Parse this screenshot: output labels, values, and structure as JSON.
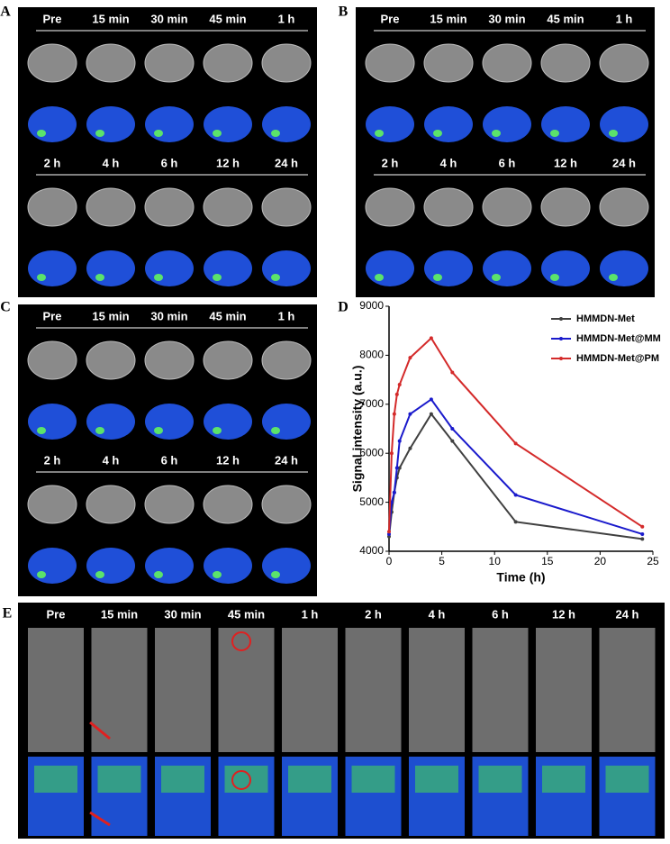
{
  "panels": [
    {
      "label": "A",
      "rows": [
        [
          "Pre",
          "15 min",
          "30 min",
          "45 min",
          "1 h"
        ],
        [
          "2 h",
          "4 h",
          "6 h",
          "12 h",
          "24 h"
        ]
      ]
    },
    {
      "label": "B",
      "rows": [
        [
          "Pre",
          "15 min",
          "30 min",
          "45 min",
          "1 h"
        ],
        [
          "2 h",
          "4 h",
          "6 h",
          "12 h",
          "24 h"
        ]
      ]
    },
    {
      "label": "C",
      "rows": [
        [
          "Pre",
          "15 min",
          "30 min",
          "45 min",
          "1 h"
        ],
        [
          "2 h",
          "4 h",
          "6 h",
          "12 h",
          "24 h"
        ]
      ]
    }
  ],
  "panel_d": {
    "label": "D"
  },
  "panel_e": {
    "label": "E",
    "times": [
      "Pre",
      "15 min",
      "30 min",
      "45 min",
      "1 h",
      "2 h",
      "4 h",
      "6 h",
      "12 h",
      "24 h"
    ]
  },
  "chart_data": {
    "type": "line",
    "x_label": "Time (h)",
    "y_label": "Signal intensity (a.u.)",
    "x": [
      0,
      0.25,
      0.5,
      0.75,
      1,
      2,
      4,
      6,
      12,
      24
    ],
    "series": [
      {
        "name": "HMMDN-Met",
        "color": "#404040",
        "values": [
          4300,
          4800,
          5200,
          5500,
          5700,
          6100,
          6800,
          6250,
          4600,
          4250
        ]
      },
      {
        "name": "HMMDN-Met@MM",
        "color": "#1a1acc",
        "values": [
          4350,
          5000,
          5200,
          5700,
          6250,
          6800,
          7100,
          6500,
          5150,
          4350
        ]
      },
      {
        "name": "HMMDN-Met@PM",
        "color": "#d42a2a",
        "values": [
          4400,
          6000,
          6800,
          7200,
          7400,
          7950,
          8350,
          7650,
          6200,
          4500
        ]
      }
    ],
    "xlim": [
      0,
      25
    ],
    "xticks": [
      0,
      5,
      10,
      15,
      20,
      25
    ],
    "ylim": [
      4000,
      9000
    ],
    "yticks": [
      4000,
      5000,
      6000,
      7000,
      8000,
      9000
    ],
    "legend": "upper-right"
  }
}
